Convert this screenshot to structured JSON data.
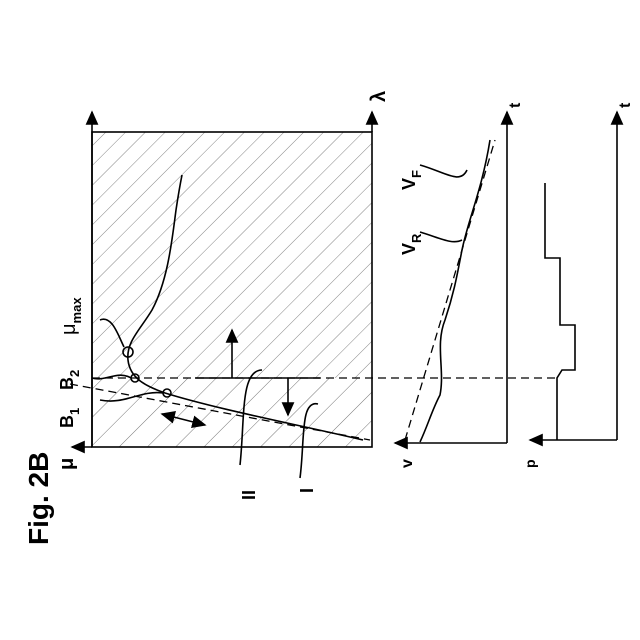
{
  "figure": {
    "title": "Fig. 2B",
    "labels": {
      "lambda": "λ",
      "mu": "μ",
      "mu_max": {
        "symbol": "μ",
        "sub": "max"
      },
      "b2": {
        "symbol": "B",
        "sub": "2"
      },
      "b1": {
        "symbol": "B",
        "sub": "1"
      },
      "curve_ii": "II",
      "curve_i": "I",
      "vf": {
        "symbol": "V",
        "sub": "F"
      },
      "vr": {
        "symbol": "V",
        "sub": "R"
      },
      "v_axis": "v",
      "t_axis_1": "t",
      "t_axis_2": "t",
      "p_axis": "p"
    }
  }
}
